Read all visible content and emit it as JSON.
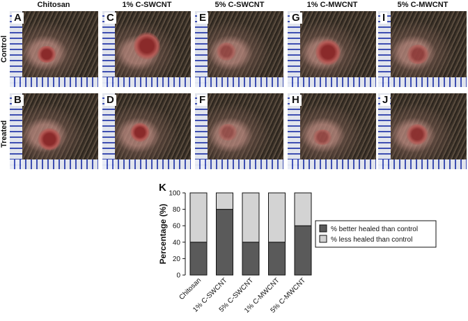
{
  "columns": [
    "Chitosan",
    "1% C-SWCNT",
    "5% C-SWCNT",
    "1% C-MWCNT",
    "5% C-MWCNT"
  ],
  "rows": [
    "Control",
    "Treated"
  ],
  "panel_letters_top": [
    "A",
    "C",
    "E",
    "G",
    "I"
  ],
  "panel_letters_bottom": [
    "B",
    "D",
    "F",
    "H",
    "J"
  ],
  "panel_k_letter": "K",
  "chart_data": {
    "type": "bar",
    "stacked": true,
    "categories": [
      "Chitosan",
      "1% C-SWCNT",
      "5% C-SWCNT",
      "1% C-MWCNT",
      "5% C-MWCNT"
    ],
    "series": [
      {
        "name": "% better healed than control",
        "values": [
          40,
          80,
          40,
          40,
          60
        ],
        "color": "#5a5a5a"
      },
      {
        "name": "% less healed than control",
        "values": [
          60,
          20,
          60,
          60,
          40
        ],
        "color": "#d3d3d3"
      }
    ],
    "ylabel": "Percentage (%)",
    "xlabel": "",
    "ylim": [
      0,
      100
    ],
    "yticks": [
      0,
      20,
      40,
      60,
      80,
      100
    ],
    "grid": false,
    "legend_position": "right"
  }
}
